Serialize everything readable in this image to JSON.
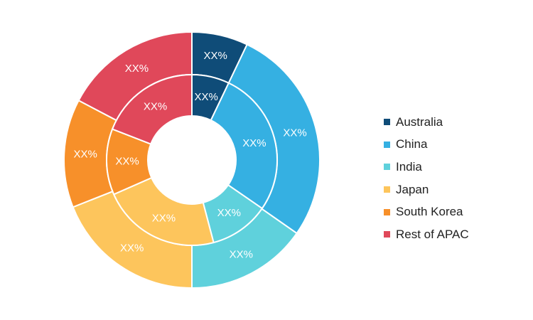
{
  "chart_data": {
    "type": "pie",
    "subtype": "nested-donut",
    "categories": [
      "Australia",
      "China",
      "India",
      "Japan",
      "South Korea",
      "Rest of APAC"
    ],
    "colors": [
      "#0f4c78",
      "#35b0e2",
      "#5fd1dc",
      "#fdc55c",
      "#f7902a",
      "#e0485a"
    ],
    "series": [
      {
        "ring": "outer",
        "values": [
          7.1,
          27.6,
          15.3,
          19.0,
          13.7,
          17.3
        ],
        "labels": [
          "XX%",
          "XX%",
          "XX%",
          "XX%",
          "XX%",
          "XX%"
        ]
      },
      {
        "ring": "inner",
        "values": [
          7.1,
          27.5,
          11.3,
          22.5,
          12.5,
          19.1
        ],
        "labels": [
          "XX%",
          "XX%",
          "XX%",
          "XX%",
          "XX%",
          "XX%"
        ]
      }
    ],
    "legend_position": "right"
  }
}
